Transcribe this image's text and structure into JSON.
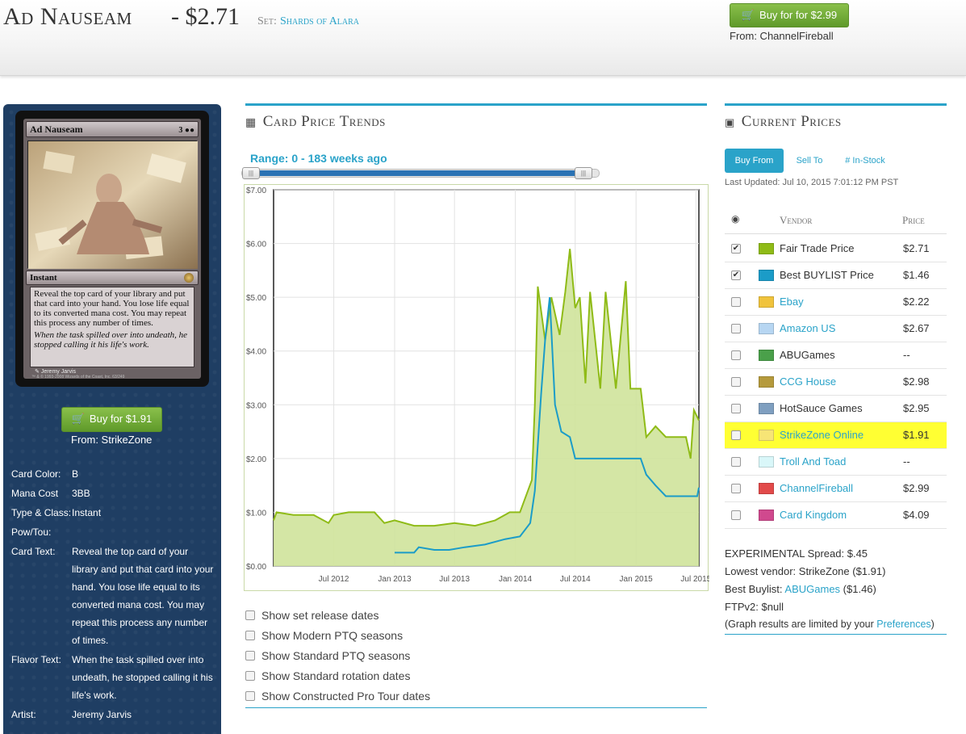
{
  "header": {
    "card_name": "Ad Nauseam",
    "price": "- $2.71",
    "set_label": "Set:",
    "set_name": "Shards of Alara",
    "buy_button": "Buy for for $2.99",
    "buy_from": "From: ChannelFireball"
  },
  "card": {
    "name": "Ad Nauseam",
    "mana": "3",
    "type_line": "Instant",
    "rules_text": "Reveal the top card of your library and put that card into your hand. You lose life equal to its converted mana cost. You may repeat this process any number of times.",
    "flavor_text": "When the task spilled over into undeath, he stopped calling it his life's work.",
    "artist_line": "Jeremy Jarvis",
    "copyright": "™ & © 1993-2008 Wizards of the Coast, Inc. 63/249"
  },
  "left": {
    "buy_button": "Buy for $1.91",
    "buy_from": "From: StrikeZone",
    "info": [
      {
        "key": "Card Color:",
        "value": "B"
      },
      {
        "key": "Mana Cost",
        "value": "3BB"
      },
      {
        "key": "Type & Class:",
        "value": "Instant"
      },
      {
        "key": "Pow/Tou:",
        "value": ""
      },
      {
        "key": "Card Text:",
        "value": "Reveal the top card of your library and put that card into your hand. You lose life equal to its converted mana cost. You may repeat this process any number of times."
      },
      {
        "key": "Flavor Text:",
        "value": "When the task spilled over into undeath, he stopped calling it his life's work."
      },
      {
        "key": "Artist:",
        "value": "Jeremy Jarvis"
      }
    ]
  },
  "center": {
    "section_title": "Card Price Trends",
    "range_label": "Range: 0 - 183 weeks ago",
    "slider": {
      "start_fraction": 0.0,
      "end_fraction": 1.0
    },
    "checkboxes": [
      "Show set release dates",
      "Show Modern PTQ seasons",
      "Show Standard PTQ seasons",
      "Show Standard rotation dates",
      "Show Constructed Pro Tour dates"
    ]
  },
  "chart_data": {
    "type": "area",
    "title": "",
    "xlabel": "",
    "ylabel": "",
    "x_ticks": [
      "Jul 2012",
      "Jan 2013",
      "Jul 2013",
      "Jan 2014",
      "Jul 2014",
      "Jan 2015",
      "Jul 2015"
    ],
    "y_ticks": [
      "$0.00",
      "$1.00",
      "$2.00",
      "$3.00",
      "$4.00",
      "$5.00",
      "$6.00",
      "$7.00"
    ],
    "ylim": [
      0,
      7
    ],
    "xlim": [
      "2012-01-01",
      "2015-07-10"
    ],
    "grid": true,
    "series": [
      {
        "name": "Fair Trade Price",
        "color": "#8fbb17",
        "fill": "#cfe39b",
        "points": [
          [
            "2012-01-01",
            0.85
          ],
          [
            "2012-01-10",
            1.0
          ],
          [
            "2012-03-01",
            0.95
          ],
          [
            "2012-05-01",
            0.95
          ],
          [
            "2012-06-15",
            0.8
          ],
          [
            "2012-07-01",
            0.95
          ],
          [
            "2012-08-15",
            1.0
          ],
          [
            "2012-11-01",
            1.0
          ],
          [
            "2012-12-01",
            0.8
          ],
          [
            "2013-01-01",
            0.85
          ],
          [
            "2013-03-01",
            0.75
          ],
          [
            "2013-05-01",
            0.75
          ],
          [
            "2013-07-01",
            0.8
          ],
          [
            "2013-09-01",
            0.75
          ],
          [
            "2013-11-01",
            0.85
          ],
          [
            "2013-12-15",
            1.0
          ],
          [
            "2014-01-15",
            1.0
          ],
          [
            "2014-02-20",
            1.6
          ],
          [
            "2014-03-01",
            3.0
          ],
          [
            "2014-03-10",
            5.2
          ],
          [
            "2014-04-01",
            4.2
          ],
          [
            "2014-04-20",
            5.0
          ],
          [
            "2014-05-15",
            4.3
          ],
          [
            "2014-06-01",
            5.1
          ],
          [
            "2014-06-15",
            5.9
          ],
          [
            "2014-07-01",
            4.8
          ],
          [
            "2014-07-15",
            5.0
          ],
          [
            "2014-08-01",
            3.4
          ],
          [
            "2014-08-15",
            5.1
          ],
          [
            "2014-09-15",
            3.3
          ],
          [
            "2014-10-01",
            5.1
          ],
          [
            "2014-11-01",
            3.3
          ],
          [
            "2014-12-01",
            5.3
          ],
          [
            "2014-12-15",
            3.3
          ],
          [
            "2015-01-15",
            3.3
          ],
          [
            "2015-02-01",
            2.4
          ],
          [
            "2015-03-01",
            2.6
          ],
          [
            "2015-04-01",
            2.4
          ],
          [
            "2015-06-01",
            2.4
          ],
          [
            "2015-06-15",
            2.0
          ],
          [
            "2015-06-25",
            2.9
          ],
          [
            "2015-07-10",
            2.71
          ]
        ]
      },
      {
        "name": "Best BUYLIST Price",
        "color": "#1b9cc8",
        "points": [
          [
            "2013-01-01",
            0.25
          ],
          [
            "2013-03-01",
            0.25
          ],
          [
            "2013-03-15",
            0.35
          ],
          [
            "2013-05-01",
            0.3
          ],
          [
            "2013-06-15",
            0.3
          ],
          [
            "2013-08-01",
            0.35
          ],
          [
            "2013-10-01",
            0.4
          ],
          [
            "2013-12-01",
            0.5
          ],
          [
            "2014-01-15",
            0.55
          ],
          [
            "2014-02-15",
            0.8
          ],
          [
            "2014-03-01",
            1.4
          ],
          [
            "2014-03-20",
            3.2
          ],
          [
            "2014-04-01",
            4.2
          ],
          [
            "2014-04-15",
            5.0
          ],
          [
            "2014-05-01",
            3.0
          ],
          [
            "2014-05-20",
            2.5
          ],
          [
            "2014-06-15",
            2.4
          ],
          [
            "2014-07-01",
            2.0
          ],
          [
            "2014-09-01",
            2.0
          ],
          [
            "2014-10-15",
            2.0
          ],
          [
            "2015-01-15",
            2.0
          ],
          [
            "2015-02-01",
            1.7
          ],
          [
            "2015-03-01",
            1.5
          ],
          [
            "2015-04-01",
            1.3
          ],
          [
            "2015-07-05",
            1.3
          ],
          [
            "2015-07-10",
            1.46
          ]
        ]
      }
    ]
  },
  "right": {
    "section_title": "Current Prices",
    "tabs": [
      "Buy From",
      "Sell To",
      "# In-Stock"
    ],
    "last_updated": "Last Updated: Jul 10, 2015 7:01:12 PM PST",
    "col_vendor": "Vendor",
    "col_price": "Price",
    "vendors": [
      {
        "name": "Fair Trade Price",
        "price": "$2.71",
        "color": "#8fbb17",
        "checked": true,
        "link": false,
        "highlight": false
      },
      {
        "name": "Best BUYLIST Price",
        "price": "$1.46",
        "color": "#1b9cc8",
        "checked": true,
        "link": false,
        "highlight": false
      },
      {
        "name": "Ebay",
        "price": "$2.22",
        "color": "#f0c33c",
        "checked": false,
        "link": true,
        "highlight": false
      },
      {
        "name": "Amazon US",
        "price": "$2.67",
        "color": "#b7d6f2",
        "checked": false,
        "link": true,
        "highlight": false
      },
      {
        "name": "ABUGames",
        "price": "--",
        "color": "#4aa04a",
        "checked": false,
        "link": false,
        "highlight": false
      },
      {
        "name": "CCG House",
        "price": "$2.98",
        "color": "#b59a3c",
        "checked": false,
        "link": true,
        "highlight": false
      },
      {
        "name": "HotSauce Games",
        "price": "$2.95",
        "color": "#7f9fc0",
        "checked": false,
        "link": false,
        "highlight": false
      },
      {
        "name": "StrikeZone Online",
        "price": "$1.91",
        "color": "#f7e576",
        "checked": false,
        "link": true,
        "highlight": true
      },
      {
        "name": "Troll And Toad",
        "price": "--",
        "color": "#d9f7f9",
        "checked": false,
        "link": true,
        "highlight": false
      },
      {
        "name": "ChannelFireball",
        "price": "$2.99",
        "color": "#e24a4a",
        "checked": false,
        "link": true,
        "highlight": false
      },
      {
        "name": "Card Kingdom",
        "price": "$4.09",
        "color": "#d0498e",
        "checked": false,
        "link": true,
        "highlight": false
      }
    ],
    "spread": "EXPERIMENTAL Spread: $.45",
    "lowest_vendor": "Lowest vendor: StrikeZone ($1.91)",
    "best_buylist_prefix": "Best Buylist: ",
    "best_buylist_vendor": "ABUGames",
    "best_buylist_suffix": " ($1.46)",
    "ftpv2": "FTPv2: $null",
    "graph_note_prefix": " (Graph results are limited by your ",
    "graph_note_link": "Preferences",
    "graph_note_suffix": ")"
  }
}
